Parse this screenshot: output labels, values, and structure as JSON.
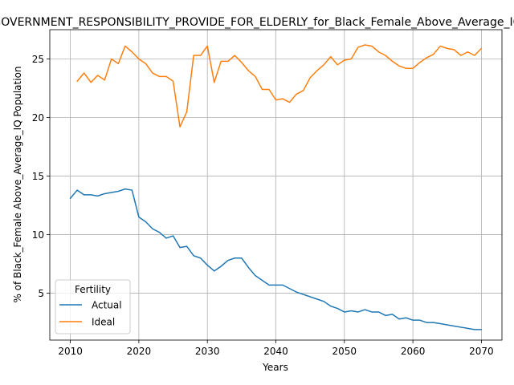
{
  "chart_data": {
    "type": "line",
    "title": "GOVERNMENT_RESPONSIBILITY_PROVIDE_FOR_ELDERLY_for_Black_Female_Above_Average_IQ",
    "xlabel": "Years",
    "ylabel": "% of Black_Female Above_Average_IQ Population",
    "xlim": [
      2007,
      2073
    ],
    "ylim": [
      1.0,
      27.5
    ],
    "xticks": [
      2010,
      2020,
      2030,
      2040,
      2050,
      2060,
      2070
    ],
    "yticks": [
      5,
      10,
      15,
      20,
      25
    ],
    "grid": true,
    "legend": {
      "title": "Fertility",
      "placement": "lower-left"
    },
    "series": [
      {
        "name": "Actual",
        "color": "#1f77b4",
        "x": [
          2010,
          2011,
          2012,
          2013,
          2014,
          2015,
          2016,
          2017,
          2018,
          2019,
          2020,
          2021,
          2022,
          2023,
          2024,
          2025,
          2026,
          2027,
          2028,
          2029,
          2030,
          2031,
          2032,
          2033,
          2034,
          2035,
          2036,
          2037,
          2038,
          2039,
          2040,
          2041,
          2042,
          2043,
          2044,
          2045,
          2046,
          2047,
          2048,
          2049,
          2050,
          2051,
          2052,
          2053,
          2054,
          2055,
          2056,
          2057,
          2058,
          2059,
          2060,
          2061,
          2062,
          2063,
          2064,
          2065,
          2066,
          2067,
          2068,
          2069,
          2070
        ],
        "values": [
          13.1,
          13.8,
          13.4,
          13.4,
          13.3,
          13.5,
          13.6,
          13.7,
          13.9,
          13.8,
          11.5,
          11.1,
          10.5,
          10.2,
          9.7,
          9.9,
          8.9,
          9.0,
          8.2,
          8.0,
          7.4,
          6.9,
          7.3,
          7.8,
          8.0,
          8.0,
          7.2,
          6.5,
          6.1,
          5.7,
          5.7,
          5.7,
          5.4,
          5.1,
          4.9,
          4.7,
          4.5,
          4.3,
          3.9,
          3.7,
          3.4,
          3.5,
          3.4,
          3.6,
          3.4,
          3.4,
          3.1,
          3.2,
          2.8,
          2.9,
          2.7,
          2.7,
          2.5,
          2.5,
          2.4,
          2.3,
          2.2,
          2.1,
          2.0,
          1.9,
          1.9
        ]
      },
      {
        "name": "Ideal",
        "color": "#ff7f0e",
        "x": [
          2011,
          2012,
          2013,
          2014,
          2015,
          2016,
          2017,
          2018,
          2019,
          2020,
          2021,
          2022,
          2023,
          2024,
          2025,
          2026,
          2027,
          2028,
          2029,
          2030,
          2031,
          2032,
          2033,
          2034,
          2035,
          2036,
          2037,
          2038,
          2039,
          2040,
          2041,
          2042,
          2043,
          2044,
          2045,
          2046,
          2047,
          2048,
          2049,
          2050,
          2051,
          2052,
          2053,
          2054,
          2055,
          2056,
          2057,
          2058,
          2059,
          2060,
          2061,
          2062,
          2063,
          2064,
          2065,
          2066,
          2067,
          2068,
          2069,
          2070
        ],
        "values": [
          23.1,
          23.8,
          23.0,
          23.6,
          23.2,
          25.0,
          24.6,
          26.1,
          25.6,
          25.0,
          24.6,
          23.8,
          23.5,
          23.5,
          23.1,
          19.2,
          20.5,
          25.3,
          25.3,
          26.1,
          23.0,
          24.8,
          24.8,
          25.3,
          24.7,
          24.0,
          23.5,
          22.4,
          22.4,
          21.5,
          21.6,
          21.3,
          22.0,
          22.3,
          23.4,
          24.0,
          24.5,
          25.2,
          24.5,
          24.9,
          25.0,
          26.0,
          26.2,
          26.1,
          25.6,
          25.3,
          24.8,
          24.4,
          24.2,
          24.2,
          24.7,
          25.1,
          25.4,
          26.1,
          25.9,
          25.8,
          25.3,
          25.6,
          25.3,
          25.9
        ]
      }
    ]
  }
}
